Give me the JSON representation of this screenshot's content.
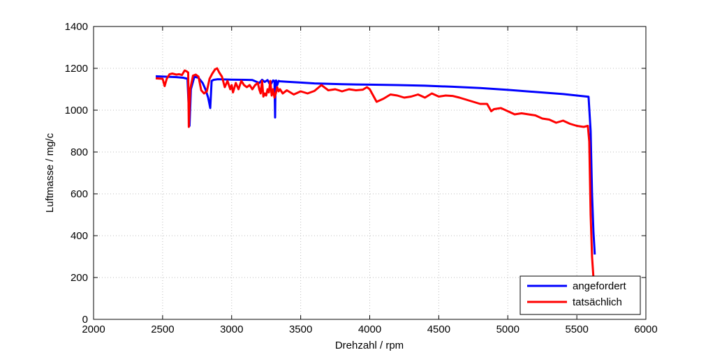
{
  "chart_data": {
    "type": "line",
    "title": "",
    "xlabel": "Drehzahl / rpm",
    "ylabel": "Luftmasse / mg/c",
    "xlim": [
      2000,
      6000
    ],
    "ylim": [
      0,
      1400
    ],
    "xticks": [
      2000,
      2500,
      3000,
      3500,
      4000,
      4500,
      5000,
      5500,
      6000
    ],
    "yticks": [
      0,
      200,
      400,
      600,
      800,
      1000,
      1200,
      1400
    ],
    "grid": true,
    "legend_position": "bottom-right",
    "series": [
      {
        "name": "angefordert",
        "color": "#0000ff",
        "x": [
          2450,
          2600,
          2650,
          2680,
          2695,
          2705,
          2730,
          2760,
          2790,
          2810,
          2830,
          2845,
          2855,
          2870,
          2900,
          3000,
          3100,
          3150,
          3200,
          3220,
          3240,
          3260,
          3280,
          3300,
          3310,
          3315,
          3318,
          3322,
          3330,
          3340,
          3350,
          3400,
          3500,
          3600,
          3800,
          4000,
          4200,
          4400,
          4600,
          4800,
          5000,
          5200,
          5400,
          5560,
          5585,
          5600,
          5610,
          5620,
          5630
        ],
        "y": [
          1162,
          1158,
          1155,
          1150,
          925,
          1100,
          1160,
          1155,
          1130,
          1100,
          1060,
          1010,
          1140,
          1145,
          1148,
          1146,
          1145,
          1144,
          1130,
          1145,
          1135,
          1144,
          1120,
          1142,
          1140,
          965,
          1130,
          1142,
          1120,
          1140,
          1138,
          1136,
          1132,
          1128,
          1124,
          1122,
          1120,
          1117,
          1112,
          1106,
          1097,
          1087,
          1077,
          1066,
          1064,
          900,
          600,
          420,
          310
        ]
      },
      {
        "name": "tatsächlich",
        "color": "#ff0000",
        "x": [
          2450,
          2500,
          2515,
          2530,
          2550,
          2570,
          2600,
          2620,
          2640,
          2660,
          2675,
          2685,
          2690,
          2700,
          2720,
          2740,
          2760,
          2780,
          2800,
          2820,
          2840,
          2860,
          2880,
          2895,
          2910,
          2930,
          2950,
          2970,
          2990,
          3000,
          3010,
          3030,
          3050,
          3070,
          3090,
          3110,
          3130,
          3150,
          3170,
          3190,
          3200,
          3210,
          3220,
          3230,
          3240,
          3250,
          3260,
          3270,
          3280,
          3290,
          3300,
          3310,
          3320,
          3330,
          3340,
          3350,
          3370,
          3400,
          3450,
          3500,
          3550,
          3600,
          3650,
          3700,
          3750,
          3800,
          3850,
          3900,
          3950,
          3980,
          4000,
          4050,
          4100,
          4150,
          4200,
          4250,
          4300,
          4350,
          4400,
          4450,
          4500,
          4550,
          4600,
          4650,
          4700,
          4750,
          4800,
          4850,
          4880,
          4900,
          4950,
          5000,
          5050,
          5100,
          5150,
          5200,
          5250,
          5300,
          5350,
          5400,
          5450,
          5500,
          5550,
          5580,
          5590,
          5600,
          5610,
          5620
        ],
        "y": [
          1152,
          1150,
          1115,
          1150,
          1172,
          1175,
          1170,
          1172,
          1168,
          1190,
          1185,
          1180,
          920,
          1100,
          1165,
          1170,
          1160,
          1095,
          1080,
          1090,
          1150,
          1175,
          1195,
          1200,
          1180,
          1160,
          1110,
          1140,
          1100,
          1120,
          1085,
          1130,
          1100,
          1140,
          1120,
          1110,
          1120,
          1100,
          1120,
          1130,
          1100,
          1080,
          1140,
          1065,
          1080,
          1070,
          1100,
          1085,
          1140,
          1070,
          1100,
          1060,
          1080,
          1110,
          1090,
          1100,
          1080,
          1095,
          1075,
          1090,
          1080,
          1092,
          1120,
          1095,
          1100,
          1090,
          1100,
          1095,
          1098,
          1110,
          1100,
          1040,
          1055,
          1075,
          1070,
          1060,
          1065,
          1075,
          1060,
          1080,
          1065,
          1070,
          1068,
          1060,
          1050,
          1040,
          1030,
          1030,
          995,
          1005,
          1010,
          995,
          980,
          985,
          980,
          975,
          960,
          955,
          940,
          950,
          935,
          925,
          920,
          925,
          850,
          500,
          300,
          200
        ]
      }
    ]
  }
}
